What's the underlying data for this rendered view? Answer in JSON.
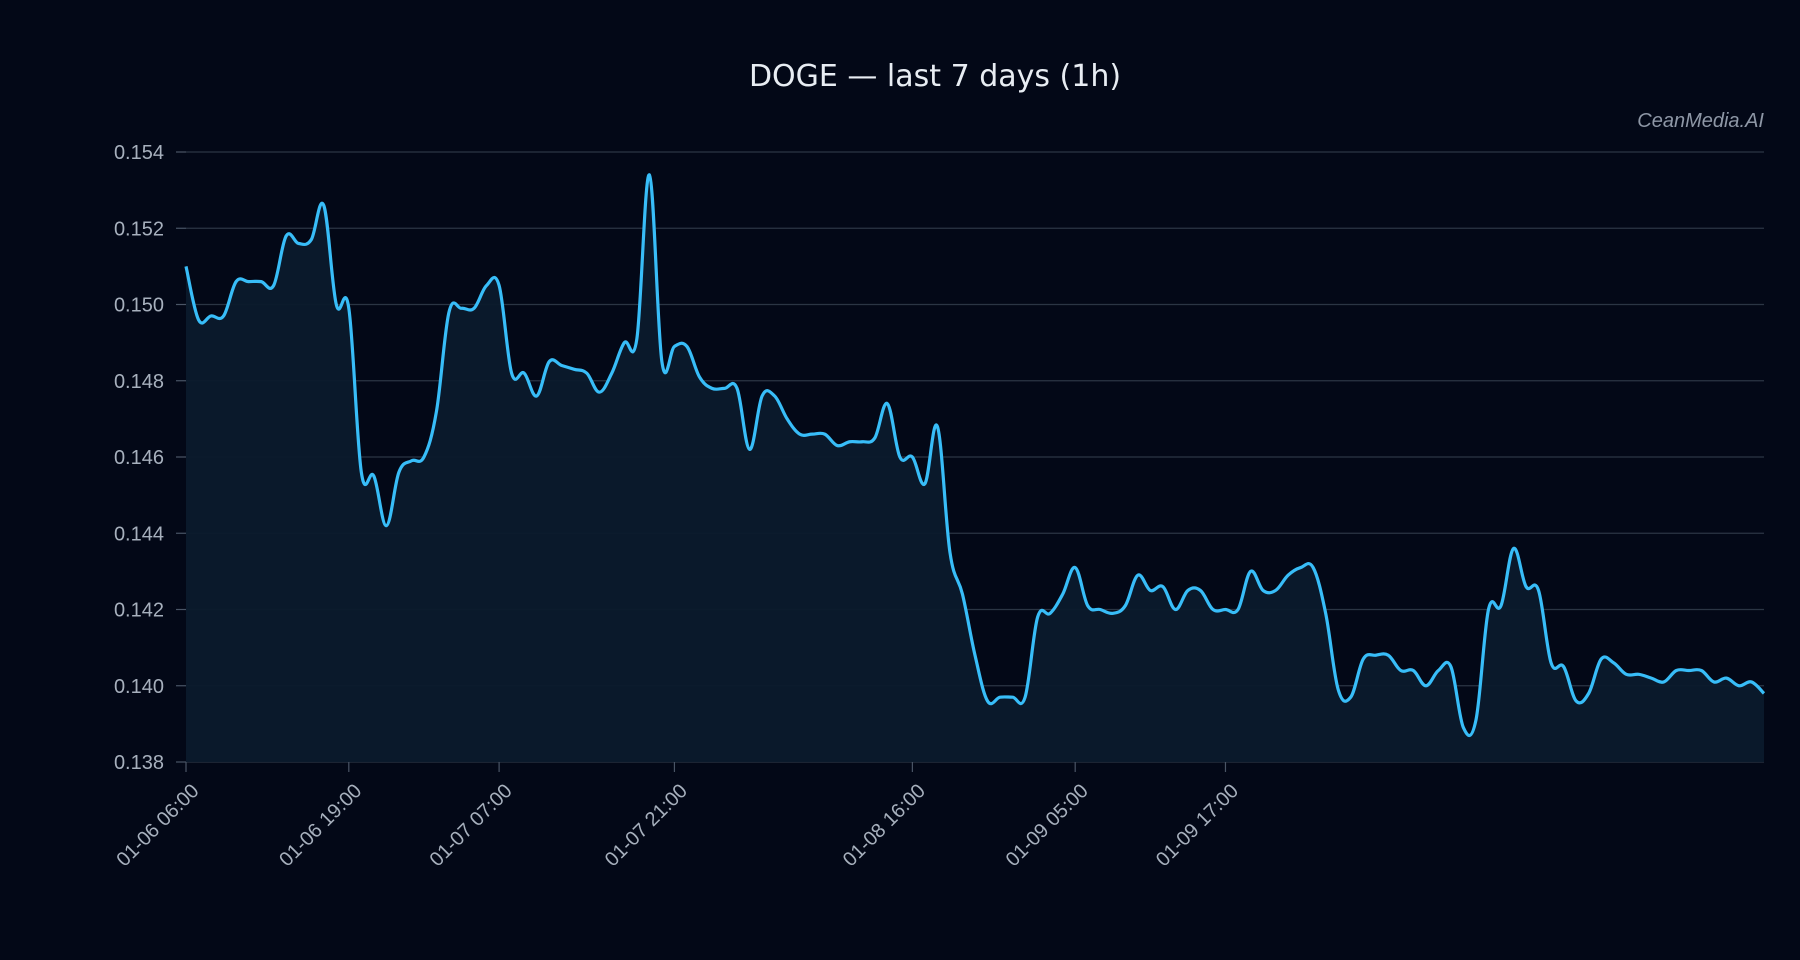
{
  "chart_data": {
    "type": "area",
    "title": "DOGE — last 7 days (1h)",
    "watermark": "CeanMedia.AI",
    "xlabel": "",
    "ylabel": "",
    "ylim": [
      0.138,
      0.154
    ],
    "yticks": [
      0.138,
      0.14,
      0.142,
      0.144,
      0.146,
      0.148,
      0.15,
      0.152,
      0.154
    ],
    "ytick_labels": [
      "0.138",
      "0.140",
      "0.142",
      "0.144",
      "0.146",
      "0.148",
      "0.150",
      "0.152",
      "0.154"
    ],
    "xticks": [
      0,
      13,
      25,
      39,
      58,
      71,
      83
    ],
    "xtick_labels": [
      "01-06 06:00",
      "01-06 19:00",
      "01-07 07:00",
      "01-07 21:00",
      "01-08 16:00",
      "01-09 05:00",
      "01-09 17:00"
    ],
    "grid": "horizontal",
    "colors": {
      "line": "#38bdf8",
      "fill": "#0b1a2c",
      "grid": "#2b3544",
      "background": "#030817"
    },
    "series": [
      {
        "values": [
          0.151,
          0.1496,
          0.1497,
          0.1497,
          0.1506,
          0.1506,
          0.1506,
          0.1505,
          0.1518,
          0.1516,
          0.1517,
          0.1526,
          0.15,
          0.1499,
          0.1456,
          0.1455,
          0.1442,
          0.1456,
          0.1459,
          0.146,
          0.1472,
          0.1498,
          0.1499,
          0.1499,
          0.1505,
          0.1505,
          0.1482,
          0.1482,
          0.1476,
          0.1485,
          0.1484,
          0.1483,
          0.1482,
          0.1477,
          0.1482,
          0.149,
          0.1491,
          0.1534,
          0.1485,
          0.1489,
          0.1489,
          0.1481,
          0.1478,
          0.1478,
          0.1478,
          0.1462,
          0.1476,
          0.1476,
          0.147,
          0.1466,
          0.1466,
          0.1466,
          0.1463,
          0.1464,
          0.1464,
          0.1465,
          0.1474,
          0.146,
          0.146,
          0.1453,
          0.1468,
          0.1435,
          0.1424,
          0.1408,
          0.1396,
          0.1397,
          0.1397,
          0.1397,
          0.1418,
          0.1419,
          0.1424,
          0.1431,
          0.1421,
          0.142,
          0.1419,
          0.1421,
          0.1429,
          0.1425,
          0.1426,
          0.142,
          0.1425,
          0.1425,
          0.142,
          0.142,
          0.142,
          0.143,
          0.1425,
          0.1425,
          0.1429,
          0.1431,
          0.1431,
          0.1419,
          0.1399,
          0.1397,
          0.1407,
          0.1408,
          0.1408,
          0.1404,
          0.1404,
          0.14,
          0.1404,
          0.1405,
          0.1389,
          0.1391,
          0.142,
          0.1421,
          0.1436,
          0.1426,
          0.1425,
          0.1406,
          0.1405,
          0.1396,
          0.1398,
          0.1407,
          0.1406,
          0.1403,
          0.1403,
          0.1402,
          0.1401,
          0.1404,
          0.1404,
          0.1404,
          0.1401,
          0.1402,
          0.14,
          0.1401,
          0.1398
        ]
      }
    ]
  }
}
